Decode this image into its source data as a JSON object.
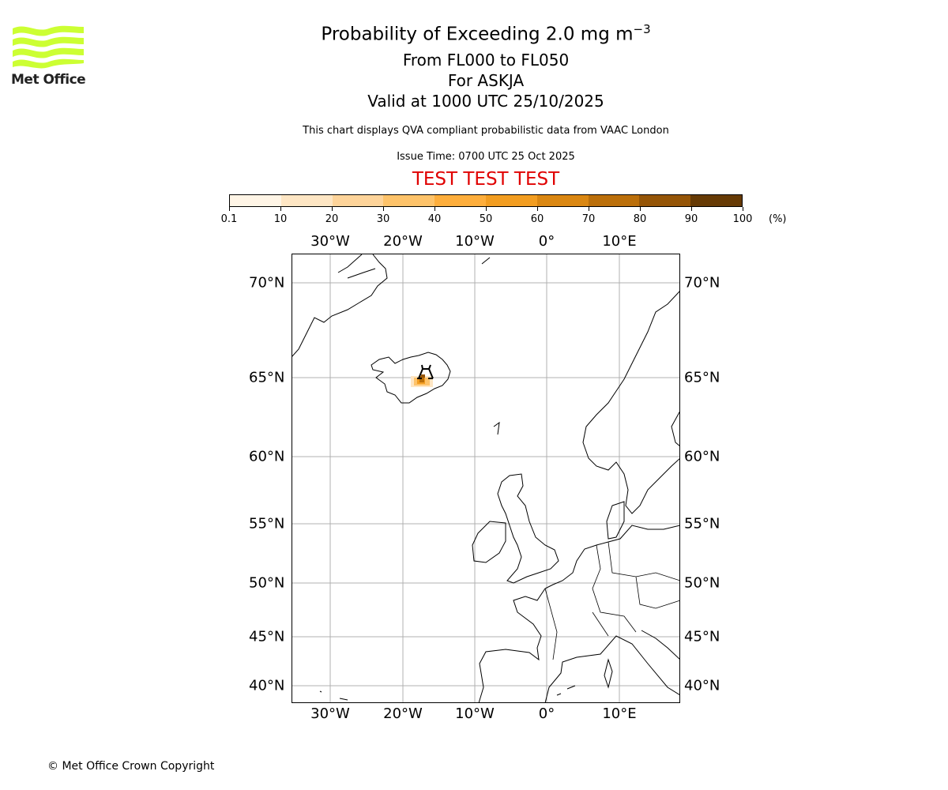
{
  "logo": {
    "text": "Met Office",
    "color": "#ccff33"
  },
  "title": {
    "main": "Probability of Exceeding 2.0 mg m",
    "sup": "−3",
    "levels": "From FL000 to FL050",
    "volcano": "For ASKJA",
    "valid": "Valid at 1000 UTC 25/10/2025",
    "description": "This chart displays QVA compliant probabilistic data from VAAC London",
    "issue_time": "Issue Time: 0700 UTC 25 Oct 2025",
    "test_banner": "TEST TEST TEST"
  },
  "colorbar": {
    "ticks": [
      "0.1",
      "10",
      "20",
      "30",
      "40",
      "50",
      "60",
      "70",
      "80",
      "90",
      "100"
    ],
    "unit": "(%)",
    "colors": [
      "#fff5e6",
      "#fee6c4",
      "#fed49a",
      "#fec36a",
      "#feae3c",
      "#f29d21",
      "#da8712",
      "#bb6f0a",
      "#955507",
      "#663a05"
    ]
  },
  "map": {
    "lon_labels": [
      "30°W",
      "20°W",
      "10°W",
      "0°",
      "10°E"
    ],
    "lat_labels": [
      "70°N",
      "65°N",
      "60°N",
      "55°N",
      "50°N",
      "45°N",
      "40°N"
    ],
    "volcano_name": "ASKJA"
  },
  "footer": {
    "copyright": "© Met Office Crown Copyright"
  }
}
